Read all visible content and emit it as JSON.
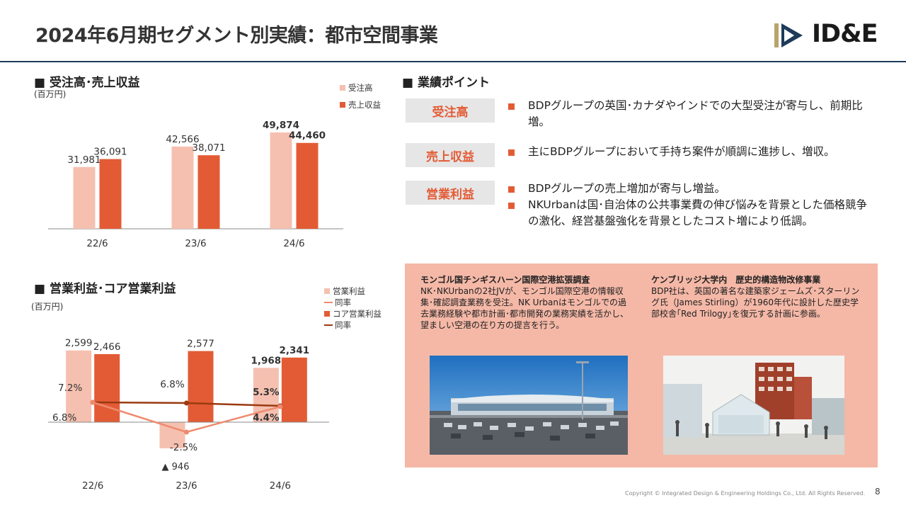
{
  "header": {
    "title": "2024年6月期セグメント別実績：都市空間事業",
    "logo_text": "ID&E"
  },
  "orders_sales": {
    "heading": "■ 受注高･売上収益",
    "unit": "(百万円)",
    "legend": [
      "受注高",
      "売上収益"
    ],
    "colors": {
      "orders": "#f5c0b0",
      "sales": "#e35b35"
    }
  },
  "profit": {
    "heading": "■ 営業利益･コア営業利益",
    "unit": "(百万円)",
    "legend": [
      "営業利益",
      "同率",
      "コア営業利益",
      "同率"
    ],
    "colors": {
      "op": "#f5c0b0",
      "op_rate": "#ee8a6e",
      "core": "#e35b35",
      "core_rate": "#9b3a10"
    },
    "negative_label": "▲ 946"
  },
  "chart_data": [
    {
      "type": "bar",
      "title": "受注高･売上収益",
      "categories": [
        "22/6",
        "23/6",
        "24/6"
      ],
      "series": [
        {
          "name": "受注高",
          "values": [
            31981,
            42566,
            49874
          ]
        },
        {
          "name": "売上収益",
          "values": [
            36091,
            38071,
            44460
          ]
        }
      ],
      "value_labels": {
        "受注高": [
          "31,981",
          "42,566",
          "49,874"
        ],
        "売上収益": [
          "36,091",
          "38,071",
          "44,460"
        ]
      },
      "ylim": [
        0,
        55000
      ]
    },
    {
      "type": "bar",
      "title": "営業利益･コア営業利益",
      "categories": [
        "22/6",
        "23/6",
        "24/6"
      ],
      "series": [
        {
          "name": "営業利益",
          "values": [
            2599,
            -946,
            1968
          ]
        },
        {
          "name": "コア営業利益",
          "values": [
            2466,
            2577,
            2341
          ]
        }
      ],
      "value_labels": {
        "営業利益": [
          "2,599",
          "",
          "1,968"
        ],
        "コア営業利益": [
          "2,466",
          "2,577",
          "2,341"
        ]
      },
      "lines": [
        {
          "name": "同率",
          "of": "営業利益",
          "values": [
            6.8,
            -2.5,
            4.4
          ],
          "labels": [
            "6.8%",
            "-2.5%",
            "4.4%"
          ]
        },
        {
          "name": "同率",
          "of": "コア営業利益",
          "values": [
            7.2,
            6.8,
            5.3
          ],
          "labels": [
            "7.2%",
            "6.8%",
            "5.3%"
          ]
        }
      ],
      "ylim": [
        -1200,
        2900
      ]
    }
  ],
  "points": {
    "heading": "■ 業績ポイント",
    "items": [
      {
        "label": "受注高",
        "bullets": [
          "BDPグループの英国･カナダやインドでの大型受注が寄与し、前期比増。"
        ]
      },
      {
        "label": "売上収益",
        "bullets": [
          "主にBDPグループにおいて手持ち案件が順調に進捗し、増収。"
        ]
      },
      {
        "label": "営業利益",
        "bullets": [
          "BDPグループの売上増加が寄与し増益。",
          "NKUrbanは国･自治体の公共事業費の伸び悩みを背景とした価格競争の激化、経営基盤強化を背景としたコスト増により低調。"
        ]
      }
    ]
  },
  "cases": [
    {
      "title": "モンゴル国チンギスハーン国際空港拡張調査",
      "body": "NK･NKUrbanの2社JVが、モンゴル国際空港の情報収集･確認調査業務を受注。NK Urbanはモンゴルでの過去業務経験や都市計画･都市開発の業務実績を活かし、望ましい空港の在り方の提言を行う。"
    },
    {
      "title": "ケンブリッジ大学内　歴史的構造物改修事業",
      "body": "BDP社は、英国の著名な建築家ジェームズ･スターリング氏（James Stirling）が1960年代に設計した歴史学部校舎｢Red Trilogy｣を復元する計画に参画。"
    }
  ],
  "footer": {
    "copyright": "Copyright © Integrated Design & Engineering Holdings Co., Ltd.  All Rights Reserved.",
    "page": "8"
  }
}
